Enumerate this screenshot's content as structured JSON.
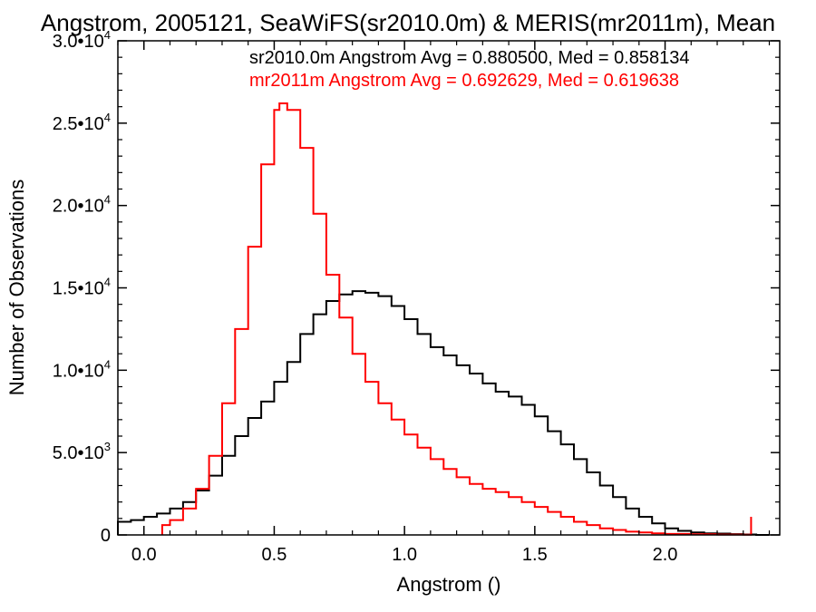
{
  "chart_data": {
    "type": "line",
    "title": "Angstrom, 2005121, SeaWiFS(sr2010.0m) & MERIS(mr2011m), Mean",
    "xlabel": "Angstrom ()",
    "ylabel": "Number of Observations",
    "xlim": [
      -0.1,
      2.44
    ],
    "ylim": [
      0,
      30000
    ],
    "grid": false,
    "legend": "top-right",
    "x_ticks": [
      {
        "value": 0.0,
        "label": "0.0"
      },
      {
        "value": 0.5,
        "label": "0.5"
      },
      {
        "value": 1.0,
        "label": "1.0"
      },
      {
        "value": 1.5,
        "label": "1.5"
      },
      {
        "value": 2.0,
        "label": "2.0"
      }
    ],
    "y_ticks": [
      {
        "value": 0,
        "mant": "0",
        "exp": ""
      },
      {
        "value": 5000,
        "mant": "5.0•10",
        "exp": "3"
      },
      {
        "value": 10000,
        "mant": "1.0•10",
        "exp": "4"
      },
      {
        "value": 15000,
        "mant": "1.5•10",
        "exp": "4"
      },
      {
        "value": 20000,
        "mant": "2.0•10",
        "exp": "4"
      },
      {
        "value": 25000,
        "mant": "2.5•10",
        "exp": "4"
      },
      {
        "value": 30000,
        "mant": "3.0•10",
        "exp": "4"
      }
    ],
    "series": [
      {
        "name": "sr2010.0m",
        "color": "#000000",
        "stat_label": "sr2010.0m Angstrom Avg = 0.880500, Med = 0.858134",
        "x": [
          -0.1,
          -0.05,
          0.0,
          0.05,
          0.1,
          0.15,
          0.2,
          0.25,
          0.3,
          0.35,
          0.4,
          0.45,
          0.5,
          0.55,
          0.6,
          0.65,
          0.7,
          0.75,
          0.8,
          0.85,
          0.9,
          0.95,
          1.0,
          1.05,
          1.1,
          1.15,
          1.2,
          1.25,
          1.3,
          1.35,
          1.4,
          1.45,
          1.5,
          1.55,
          1.6,
          1.65,
          1.7,
          1.75,
          1.8,
          1.85,
          1.9,
          1.95,
          2.0,
          2.05,
          2.1,
          2.15,
          2.2,
          2.25,
          2.3,
          2.35,
          2.4
        ],
        "y": [
          800,
          900,
          1100,
          1300,
          1600,
          2000,
          2700,
          3600,
          4800,
          6000,
          7100,
          8100,
          9300,
          10500,
          12200,
          13400,
          14200,
          14600,
          14800,
          14700,
          14500,
          13900,
          13100,
          12200,
          11400,
          10900,
          10300,
          9800,
          9200,
          8700,
          8400,
          7900,
          7200,
          6300,
          5500,
          4600,
          3800,
          3000,
          2300,
          1600,
          1100,
          700,
          400,
          250,
          150,
          100,
          80,
          50,
          30,
          0,
          0
        ]
      },
      {
        "name": "mr2011m",
        "color": "#ff0000",
        "stat_label": "mr2011m Angstrom Avg = 0.692629, Med = 0.619638",
        "x": [
          0.07,
          0.1,
          0.15,
          0.2,
          0.25,
          0.3,
          0.35,
          0.4,
          0.45,
          0.5,
          0.52,
          0.55,
          0.6,
          0.65,
          0.7,
          0.75,
          0.8,
          0.85,
          0.9,
          0.95,
          1.0,
          1.05,
          1.1,
          1.15,
          1.2,
          1.25,
          1.3,
          1.35,
          1.4,
          1.45,
          1.5,
          1.55,
          1.6,
          1.65,
          1.7,
          1.75,
          1.8,
          1.85,
          1.9,
          1.95,
          2.0,
          2.1,
          2.2,
          2.3,
          2.33
        ],
        "y": [
          600,
          900,
          1600,
          2800,
          4800,
          8000,
          12500,
          17500,
          22500,
          25800,
          26200,
          25800,
          23500,
          19500,
          15800,
          13200,
          11000,
          9300,
          8000,
          7000,
          6100,
          5300,
          4600,
          4000,
          3500,
          3100,
          2800,
          2600,
          2300,
          2000,
          1700,
          1400,
          1100,
          800,
          600,
          400,
          300,
          200,
          150,
          100,
          60,
          40,
          20,
          10,
          1100
        ]
      }
    ]
  }
}
